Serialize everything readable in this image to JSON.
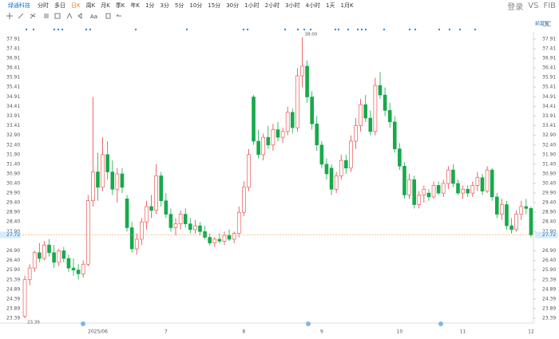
{
  "toolbar": {
    "stock": "绿通科技",
    "periods": [
      "分时",
      "多日",
      "日K",
      "周K",
      "月K",
      "季K",
      "年K",
      "1分",
      "3分",
      "5分",
      "10分",
      "15分",
      "30分",
      "1小时",
      "2小时",
      "3小时",
      "4小时",
      "1天",
      "1月K"
    ],
    "right_tools": [
      "登录",
      "VS",
      "FIB"
    ],
    "drawing_label": "Aa",
    "adjust": "前复权"
  },
  "chart_data": {
    "type": "candlestick",
    "up_color": "#e8413f",
    "down_color": "#17a94b",
    "price_line_color": "#f0a04b",
    "ylim": [
      23.14,
      38.2
    ],
    "yticks": [
      37.91,
      37.41,
      36.91,
      36.41,
      35.91,
      35.41,
      34.91,
      34.41,
      33.91,
      33.41,
      {
        "value": 32.9,
        "label": "32.90"
      },
      {
        "value": 32.4,
        "label": "32.40"
      },
      {
        "value": 31.9,
        "label": "31.90"
      },
      {
        "value": 31.4,
        "label": "31.40"
      },
      {
        "value": 30.9,
        "label": "30.90"
      },
      {
        "value": 30.4,
        "label": "30.40"
      },
      {
        "value": 29.9,
        "label": "29.90"
      },
      {
        "value": 29.4,
        "label": "29.40"
      },
      {
        "value": 28.9,
        "label": "28.90"
      },
      {
        "value": 28.4,
        "label": "28.40"
      },
      {
        "value": 27.9,
        "label": "27.90"
      },
      {
        "value": 26.9,
        "label": "26.90"
      },
      {
        "value": 26.4,
        "label": "26.40"
      },
      {
        "value": 25.9,
        "label": "25.90"
      },
      25.39,
      24.89,
      24.39,
      23.89,
      23.39
    ],
    "current_price": 27.72,
    "annotations": [
      {
        "value": 38,
        "label": "38.00"
      },
      {
        "value": 23.39,
        "label": "23.39"
      }
    ],
    "categories": [
      null,
      null,
      null,
      null,
      null,
      null,
      null,
      null,
      null,
      null,
      null,
      null,
      null,
      null,
      null,
      "2025/06",
      null,
      null,
      null,
      null,
      null,
      null,
      null,
      null,
      null,
      null,
      null,
      null,
      null,
      "7",
      null,
      null,
      null,
      null,
      null,
      null,
      null,
      null,
      null,
      null,
      null,
      null,
      null,
      null,
      null,
      "8",
      null,
      null,
      null,
      null,
      null,
      null,
      null,
      null,
      null,
      null,
      null,
      null,
      null,
      null,
      null,
      "9",
      null,
      null,
      null,
      null,
      null,
      null,
      null,
      null,
      null,
      null,
      null,
      null,
      null,
      null,
      null,
      "10",
      null,
      null,
      null,
      null,
      null,
      null,
      null,
      null,
      null,
      null,
      null,
      null,
      "11",
      null,
      null,
      null,
      null,
      null,
      null,
      null,
      null,
      null,
      null,
      null,
      null,
      null,
      "12"
    ],
    "open": [
      23.5,
      25.4,
      26.0,
      26.8,
      26.5,
      27.2,
      26.8,
      26.3,
      26.9,
      26.5,
      26.0,
      25.9,
      25.7,
      26.2,
      29.5,
      31.0,
      30.2,
      31.9,
      31.0,
      30.1,
      30.9,
      29.6,
      28.1,
      27.0,
      27.5,
      28.4,
      29.2,
      29.0,
      30.8,
      29.5,
      28.8,
      28.1,
      28.3,
      28.8,
      28.3,
      28.0,
      28.2,
      27.9,
      27.6,
      27.3,
      27.5,
      27.4,
      27.7,
      27.5,
      27.8,
      28.9,
      30.2,
      34.9,
      32.6,
      31.9,
      32.8,
      32.4,
      33.2,
      32.8,
      33.1,
      34.1,
      33.3,
      36.0,
      36.5,
      34.9,
      33.5,
      32.4,
      31.4,
      31.2,
      30.1,
      30.8,
      31.6,
      31.2,
      32.6,
      33.4,
      34.5,
      33.8,
      33.1,
      35.5,
      35.0,
      34.2,
      33.6,
      32.2,
      31.3,
      29.8,
      30.6,
      29.3,
      29.8,
      29.9,
      29.7,
      30.3,
      29.9,
      30.4,
      31.1,
      30.4,
      29.9,
      30.1,
      29.9,
      30.3,
      30.7,
      30.0,
      31.1,
      29.7,
      28.8,
      29.3,
      28.2,
      28.0,
      28.8,
      29.2,
      29.1
    ],
    "high": [
      25.6,
      26.2,
      26.9,
      27.3,
      27.4,
      27.5,
      27.2,
      27.0,
      27.1,
      26.7,
      26.5,
      26.2,
      26.4,
      29.8,
      34.9,
      32.0,
      32.8,
      32.6,
      31.6,
      31.2,
      31.2,
      29.8,
      28.4,
      27.8,
      28.6,
      29.5,
      29.8,
      31.4,
      31.0,
      29.9,
      29.1,
      28.6,
      29.0,
      29.1,
      28.6,
      28.5,
      28.4,
      28.2,
      27.8,
      27.6,
      27.8,
      27.9,
      28.0,
      27.9,
      29.2,
      30.5,
      32.2,
      35.0,
      33.2,
      33.0,
      33.4,
      33.5,
      33.6,
      33.3,
      34.4,
      34.3,
      36.4,
      38.0,
      36.8,
      35.2,
      33.9,
      32.6,
      31.7,
      31.4,
      31.0,
      31.9,
      31.9,
      32.9,
      33.8,
      34.8,
      35.0,
      34.2,
      35.9,
      36.2,
      35.4,
      34.6,
      33.9,
      32.5,
      31.5,
      30.9,
      30.8,
      30.0,
      30.3,
      30.1,
      30.5,
      30.5,
      30.6,
      31.3,
      31.4,
      30.6,
      30.3,
      30.3,
      30.5,
      31.0,
      30.9,
      31.3,
      31.2,
      29.9,
      29.6,
      29.5,
      28.6,
      29.0,
      29.5,
      29.6,
      29.2
    ],
    "low": [
      23.39,
      25.1,
      25.8,
      26.3,
      26.4,
      26.6,
      26.0,
      26.1,
      26.3,
      25.8,
      25.6,
      25.4,
      25.5,
      26.1,
      29.2,
      29.5,
      30.0,
      30.6,
      29.8,
      29.4,
      29.9,
      27.9,
      26.8,
      26.7,
      27.2,
      28.0,
      28.6,
      28.8,
      29.2,
      28.6,
      27.9,
      27.7,
      28.0,
      28.1,
      27.8,
      27.8,
      27.7,
      27.5,
      27.2,
      27.1,
      27.3,
      27.2,
      27.4,
      27.3,
      27.6,
      28.7,
      30.0,
      32.4,
      31.7,
      31.6,
      32.2,
      32.1,
      32.6,
      32.5,
      32.9,
      33.0,
      33.1,
      35.4,
      34.6,
      33.2,
      32.1,
      31.2,
      30.6,
      29.8,
      29.9,
      30.6,
      30.9,
      31.0,
      32.2,
      33.1,
      33.6,
      32.9,
      32.9,
      34.8,
      33.9,
      33.3,
      32.0,
      31.1,
      29.6,
      29.6,
      29.1,
      29.1,
      29.4,
      29.5,
      29.6,
      29.8,
      29.7,
      30.1,
      30.2,
      29.8,
      29.6,
      29.7,
      29.7,
      30.0,
      29.8,
      29.9,
      29.5,
      28.6,
      28.5,
      28.0,
      27.8,
      27.9,
      28.5,
      28.8,
      27.6
    ],
    "close": [
      25.4,
      26.0,
      26.8,
      26.5,
      27.2,
      26.8,
      26.3,
      26.9,
      26.5,
      26.0,
      25.9,
      25.7,
      26.2,
      29.5,
      31.0,
      30.2,
      31.9,
      31.0,
      30.1,
      30.9,
      30.2,
      28.1,
      27.0,
      27.5,
      28.4,
      29.2,
      29.0,
      30.8,
      29.5,
      28.8,
      28.1,
      28.3,
      28.8,
      28.3,
      28.0,
      28.2,
      27.9,
      27.6,
      27.3,
      27.5,
      27.4,
      27.7,
      27.5,
      27.8,
      28.9,
      30.2,
      31.9,
      32.6,
      31.9,
      32.8,
      32.4,
      33.2,
      32.8,
      33.1,
      34.1,
      33.3,
      36.0,
      36.5,
      34.9,
      33.5,
      32.4,
      31.4,
      30.9,
      30.1,
      30.8,
      31.6,
      31.2,
      32.6,
      33.4,
      34.5,
      33.8,
      33.1,
      35.5,
      35.0,
      34.2,
      33.6,
      32.2,
      31.3,
      29.8,
      30.6,
      29.3,
      29.8,
      30.1,
      29.7,
      30.3,
      29.9,
      30.4,
      31.1,
      30.4,
      29.9,
      30.1,
      29.9,
      30.3,
      30.7,
      30.0,
      31.1,
      29.7,
      28.8,
      29.3,
      28.2,
      28.0,
      28.8,
      29.2,
      29.1,
      27.72
    ]
  }
}
